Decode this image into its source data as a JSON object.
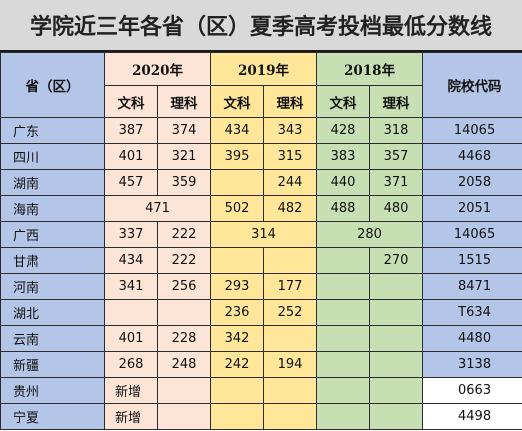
{
  "title": "学院近三年各省（区）夏季高考投档最低分数线",
  "headers": {
    "province": "省（区）",
    "year_2020": "2020年",
    "year_2019": "2019年",
    "year_2018": "2018年",
    "code": "院校代码",
    "wenke": "文科",
    "like": "理科"
  },
  "rows": [
    {
      "province": "广东",
      "v2020w": "387",
      "v2020l": "374",
      "v2019w": "434",
      "v2019l": "343",
      "v2018w": "428",
      "v2018l": "318",
      "code": "14065"
    },
    {
      "province": "四川",
      "v2020w": "401",
      "v2020l": "321",
      "v2019w": "395",
      "v2019l": "315",
      "v2018w": "383",
      "v2018l": "357",
      "code": "4468"
    },
    {
      "province": "湖南",
      "v2020w": "457",
      "v2020l": "359",
      "v2019w": "",
      "v2019l": "244",
      "v2018w": "440",
      "v2018l": "371",
      "code": "2058"
    },
    {
      "province": "海南",
      "v2020": "471",
      "v2019w": "502",
      "v2019l": "482",
      "v2018w": "488",
      "v2018l": "480",
      "code": "2051"
    },
    {
      "province": "广西",
      "v2020w": "337",
      "v2020l": "222",
      "v2019": "314",
      "v2018": "280",
      "code": "14065"
    },
    {
      "province": "甘肃",
      "v2020w": "434",
      "v2020l": "222",
      "v2019w": "",
      "v2019l": "",
      "v2018w": "",
      "v2018l": "270",
      "code": "1515"
    },
    {
      "province": "河南",
      "v2020w": "341",
      "v2020l": "256",
      "v2019w": "293",
      "v2019l": "177",
      "v2018w": "",
      "v2018l": "",
      "code": "8471"
    },
    {
      "province": "湖北",
      "v2020w": "",
      "v2020l": "",
      "v2019w": "236",
      "v2019l": "252",
      "v2018w": "",
      "v2018l": "",
      "code": "T634"
    },
    {
      "province": "云南",
      "v2020w": "401",
      "v2020l": "228",
      "v2019w": "342",
      "v2019l": "",
      "v2018w": "",
      "v2018l": "",
      "code": "4480"
    },
    {
      "province": "新疆",
      "v2020w": "268",
      "v2020l": "248",
      "v2019w": "242",
      "v2019l": "194",
      "v2018w": "",
      "v2018l": "",
      "code": "3138"
    },
    {
      "province": "贵州",
      "v2020w": "新增",
      "v2020l": "",
      "v2019w": "",
      "v2019l": "",
      "v2018w": "",
      "v2018l": "",
      "code": "0663"
    },
    {
      "province": "宁夏",
      "v2020w": "新增",
      "v2020l": "",
      "v2019w": "",
      "v2019l": "",
      "v2018w": "",
      "v2018l": "",
      "code": "4498"
    }
  ]
}
